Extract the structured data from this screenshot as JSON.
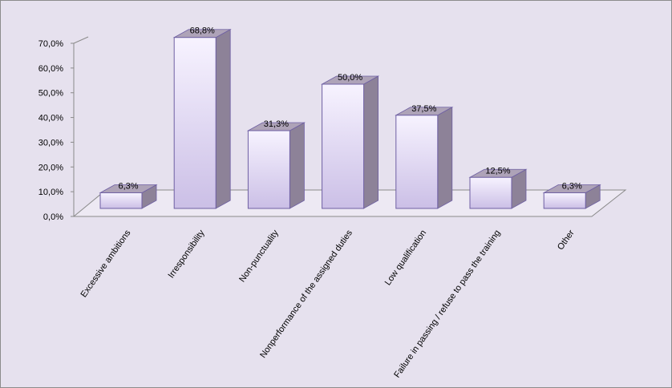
{
  "chart_data": {
    "type": "bar",
    "categories": [
      "Excessive ambitions",
      "Irresponsibility",
      "Non-punctuality",
      "Nonperformance of the assigned duties",
      "Low qualification",
      "Failure in passing / refuse to  pass the training",
      "Other"
    ],
    "values": [
      6.3,
      68.8,
      31.3,
      50.0,
      37.5,
      12.5,
      6.3
    ],
    "value_labels": [
      "6,3%",
      "68,8%",
      "31,3%",
      "50,0%",
      "37,5%",
      "12,5%",
      "6,3%"
    ],
    "y_ticks": [
      0,
      10,
      20,
      30,
      40,
      50,
      60,
      70
    ],
    "y_tick_labels": [
      "0,0%",
      "10,0%",
      "20,0%",
      "30,0%",
      "40,0%",
      "50,0%",
      "60,0%",
      "70,0%"
    ],
    "ylim": [
      0,
      70
    ],
    "title": "",
    "xlabel": "",
    "ylabel": "",
    "grid": false,
    "legend": "none",
    "style": "3d-column",
    "colors": {
      "background": "#e6e1ee",
      "bar_front_top": "#f7f3ff",
      "bar_front_bottom": "#cbbfe6",
      "bar_side": "#8d8298",
      "bar_top": "#aea3b8",
      "bar_outline": "#6e5fa3",
      "floor": "#ede9f3",
      "axis": "#8a8a8a"
    }
  }
}
